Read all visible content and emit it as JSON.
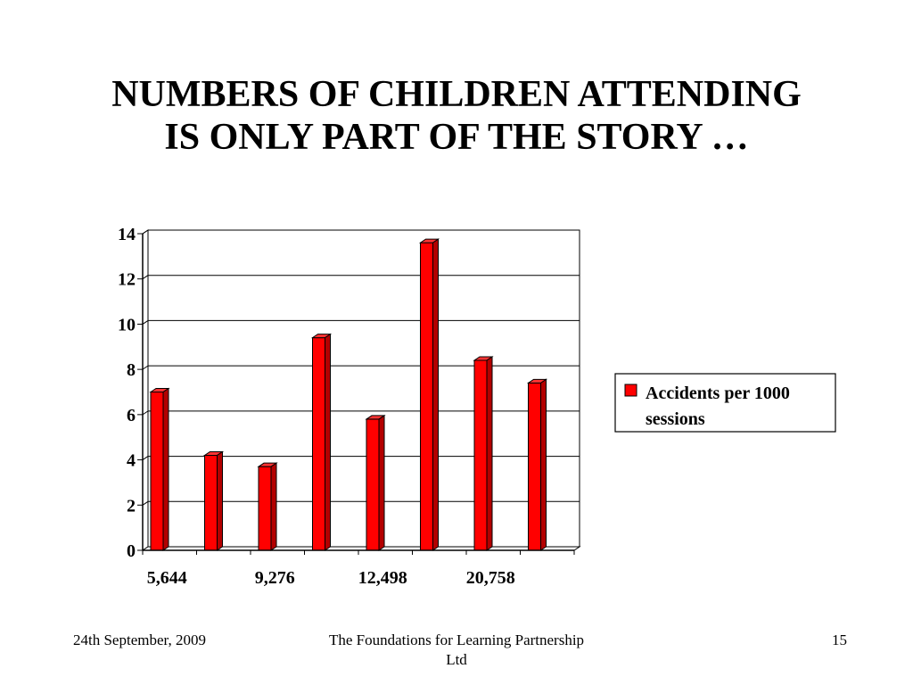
{
  "slide": {
    "title_line1": "NUMBERS OF CHILDREN ATTENDING",
    "title_line2": "IS ONLY PART OF THE STORY …"
  },
  "footer": {
    "date": "24th September, 2009",
    "org": "The Foundations for Learning Partnership Ltd",
    "page": "15"
  },
  "chart_data": {
    "type": "bar",
    "categories": [
      "5,644",
      "",
      "9,276",
      "",
      "12,498",
      "",
      "20,758",
      ""
    ],
    "series": [
      {
        "name": "Accidents per 1000 sessions",
        "color": "#ff0000",
        "values": [
          7.0,
          4.2,
          3.7,
          9.4,
          5.8,
          13.6,
          8.4,
          7.4
        ]
      }
    ],
    "ylim": [
      0,
      14
    ],
    "yticks": [
      "0",
      "2",
      "4",
      "6",
      "8",
      "10",
      "12",
      "14"
    ],
    "grid": true,
    "legend_position": "right",
    "legend_lines": [
      "Accidents per 1000",
      "sessions"
    ]
  }
}
